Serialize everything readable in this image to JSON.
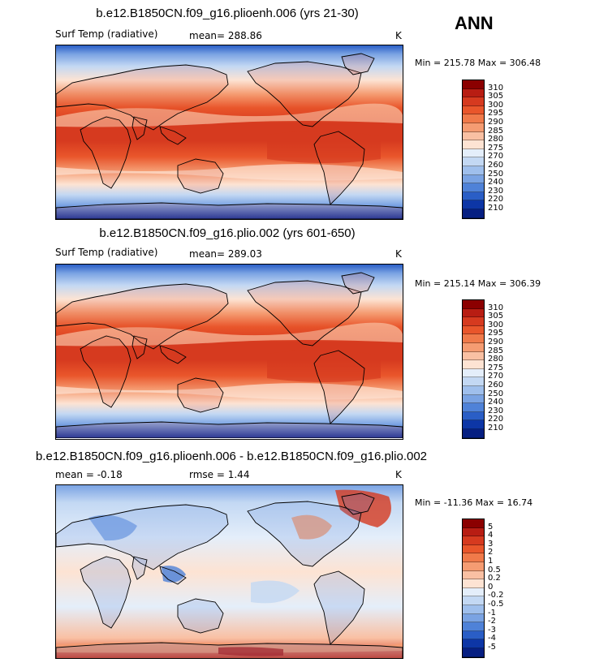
{
  "season": "ANN",
  "panels": [
    {
      "title": "b.e12.B1850CN.f09_g16.plioenh.006 (yrs 21-30)",
      "left_label": "Surf Temp (radiative)",
      "center_label": "mean= 288.86",
      "units": "K",
      "minmax": "Min = 215.78 Max = 306.48",
      "colorbar": {
        "labels": [
          "310",
          "305",
          "300",
          "295",
          "290",
          "285",
          "280",
          "275",
          "270",
          "260",
          "250",
          "240",
          "230",
          "220",
          "210"
        ],
        "colors": [
          "#8b0000",
          "#b81d13",
          "#d63a1f",
          "#e9562b",
          "#f07a4a",
          "#f59c72",
          "#f9c0a3",
          "#fde3d3",
          "#e4eefa",
          "#c3d8f3",
          "#9fbfec",
          "#7aa3e3",
          "#4f82d8",
          "#2a5ec6",
          "#0d36a6",
          "#061f82"
        ]
      },
      "map_style": "abs"
    },
    {
      "title": "b.e12.B1850CN.f09_g16.plio.002 (yrs 601-650)",
      "left_label": "Surf Temp (radiative)",
      "center_label": "mean= 289.03",
      "units": "K",
      "minmax": "Min = 215.14 Max = 306.39",
      "colorbar": {
        "labels": [
          "310",
          "305",
          "300",
          "295",
          "290",
          "285",
          "280",
          "275",
          "270",
          "260",
          "250",
          "240",
          "230",
          "220",
          "210"
        ],
        "colors": [
          "#8b0000",
          "#b81d13",
          "#d63a1f",
          "#e9562b",
          "#f07a4a",
          "#f59c72",
          "#f9c0a3",
          "#fde3d3",
          "#e4eefa",
          "#c3d8f3",
          "#9fbfec",
          "#7aa3e3",
          "#4f82d8",
          "#2a5ec6",
          "#0d36a6",
          "#061f82"
        ]
      },
      "map_style": "abs"
    },
    {
      "title": "b.e12.B1850CN.f09_g16.plioenh.006 - b.e12.B1850CN.f09_g16.plio.002",
      "left_label": "mean =   -0.18",
      "center_label": "rmse =   1.44",
      "units": "K",
      "minmax": "Min = -11.36 Max =  16.74",
      "colorbar": {
        "labels": [
          "5",
          "4",
          "3",
          "2",
          "1",
          "0.5",
          "0.2",
          "0",
          "-0.2",
          "-0.5",
          "-1",
          "-2",
          "-3",
          "-4",
          "-5"
        ],
        "colors": [
          "#8b0000",
          "#b81d13",
          "#d63a1f",
          "#e9562b",
          "#f07a4a",
          "#f59c72",
          "#f9c0a3",
          "#fde3d3",
          "#e4eefa",
          "#c3d8f3",
          "#9fbfec",
          "#7aa3e3",
          "#4f82d8",
          "#2a5ec6",
          "#0d36a6",
          "#061f82"
        ]
      },
      "map_style": "diff"
    }
  ]
}
